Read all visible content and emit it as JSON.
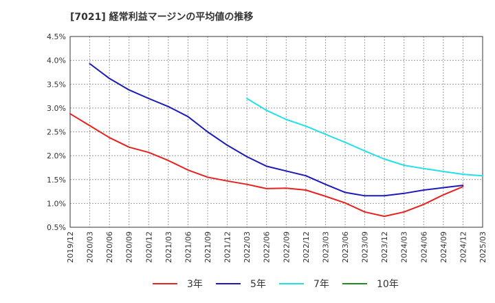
{
  "chart_data": {
    "type": "line",
    "title": "[7021]  経常利益マージンの平均値の推移",
    "xlabel": "",
    "ylabel": "",
    "x_ticks": [
      "2019/12",
      "2020/03",
      "2020/06",
      "2020/09",
      "2020/12",
      "2021/03",
      "2021/06",
      "2021/09",
      "2021/12",
      "2022/03",
      "2022/06",
      "2022/09",
      "2022/12",
      "2023/03",
      "2023/06",
      "2023/09",
      "2023/12",
      "2024/03",
      "2024/06",
      "2024/09",
      "2024/12",
      "2025/03"
    ],
    "ylim": [
      0.5,
      4.5
    ],
    "y_ticks": [
      "4.5%",
      "4.0%",
      "3.5%",
      "3.0%",
      "2.5%",
      "2.0%",
      "1.5%",
      "1.0%",
      "0.5%"
    ],
    "grid": true,
    "legend_position": "bottom",
    "series": [
      {
        "name": "3年",
        "color": "#e8201e",
        "x_start_index": 0,
        "values": [
          2.88,
          2.63,
          2.38,
          2.18,
          2.07,
          1.9,
          1.7,
          1.55,
          1.47,
          1.4,
          1.31,
          1.32,
          1.28,
          1.15,
          1.01,
          0.82,
          0.73,
          0.82,
          0.98,
          1.18,
          1.35
        ]
      },
      {
        "name": "5年",
        "color": "#1a1ab8",
        "x_start_index": 1,
        "values": [
          3.93,
          3.62,
          3.38,
          3.2,
          3.03,
          2.82,
          2.5,
          2.22,
          1.98,
          1.78,
          1.68,
          1.58,
          1.4,
          1.23,
          1.16,
          1.16,
          1.21,
          1.28,
          1.33,
          1.38
        ]
      },
      {
        "name": "7年",
        "color": "#22e0e8",
        "x_start_index": 9,
        "values": [
          3.2,
          2.95,
          2.76,
          2.62,
          2.45,
          2.28,
          2.1,
          1.93,
          1.8,
          1.73,
          1.67,
          1.61,
          1.58
        ]
      },
      {
        "name": "10年",
        "color": "#1e8c1e",
        "x_start_index": 21,
        "values": []
      }
    ]
  }
}
